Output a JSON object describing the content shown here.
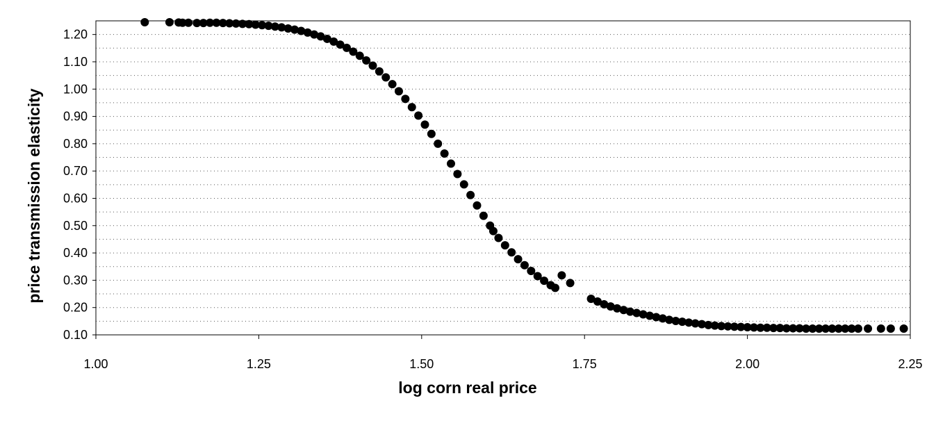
{
  "chart_data": {
    "type": "scatter",
    "title": "",
    "xlabel": "log corn real price",
    "ylabel": "price transmission elasticity",
    "xlim": [
      1.0,
      2.25
    ],
    "ylim": [
      0.1,
      1.25
    ],
    "x_ticks": [
      "1.00",
      "1.25",
      "1.50",
      "1.75",
      "2.00",
      "2.25"
    ],
    "y_ticks": [
      "0.10",
      "0.20",
      "0.30",
      "0.40",
      "0.50",
      "0.60",
      "0.70",
      "0.80",
      "0.90",
      "1.00",
      "1.10",
      "1.20"
    ],
    "grid": "horizontal-dotted",
    "legend": "none",
    "marker_color": "#000000",
    "points": [
      [
        1.075,
        1.245
      ],
      [
        1.113,
        1.245
      ],
      [
        1.127,
        1.244
      ],
      [
        1.133,
        1.243
      ],
      [
        1.142,
        1.243
      ],
      [
        1.155,
        1.242
      ],
      [
        1.165,
        1.242
      ],
      [
        1.175,
        1.243
      ],
      [
        1.185,
        1.243
      ],
      [
        1.195,
        1.242
      ],
      [
        1.205,
        1.241
      ],
      [
        1.215,
        1.24
      ],
      [
        1.225,
        1.239
      ],
      [
        1.235,
        1.238
      ],
      [
        1.245,
        1.236
      ],
      [
        1.255,
        1.234
      ],
      [
        1.265,
        1.232
      ],
      [
        1.275,
        1.229
      ],
      [
        1.285,
        1.226
      ],
      [
        1.295,
        1.222
      ],
      [
        1.305,
        1.218
      ],
      [
        1.315,
        1.213
      ],
      [
        1.325,
        1.207
      ],
      [
        1.335,
        1.2
      ],
      [
        1.345,
        1.193
      ],
      [
        1.355,
        1.184
      ],
      [
        1.365,
        1.174
      ],
      [
        1.375,
        1.163
      ],
      [
        1.385,
        1.151
      ],
      [
        1.395,
        1.137
      ],
      [
        1.405,
        1.122
      ],
      [
        1.415,
        1.105
      ],
      [
        1.425,
        1.086
      ],
      [
        1.435,
        1.065
      ],
      [
        1.445,
        1.043
      ],
      [
        1.455,
        1.018
      ],
      [
        1.465,
        0.992
      ],
      [
        1.475,
        0.964
      ],
      [
        1.485,
        0.934
      ],
      [
        1.495,
        0.903
      ],
      [
        1.505,
        0.87
      ],
      [
        1.515,
        0.836
      ],
      [
        1.525,
        0.8
      ],
      [
        1.535,
        0.764
      ],
      [
        1.545,
        0.727
      ],
      [
        1.555,
        0.689
      ],
      [
        1.565,
        0.651
      ],
      [
        1.575,
        0.612
      ],
      [
        1.585,
        0.574
      ],
      [
        1.595,
        0.536
      ],
      [
        1.605,
        0.5
      ],
      [
        1.61,
        0.48
      ],
      [
        1.618,
        0.455
      ],
      [
        1.628,
        0.428
      ],
      [
        1.638,
        0.402
      ],
      [
        1.648,
        0.377
      ],
      [
        1.658,
        0.355
      ],
      [
        1.668,
        0.334
      ],
      [
        1.678,
        0.315
      ],
      [
        1.688,
        0.298
      ],
      [
        1.698,
        0.282
      ],
      [
        1.705,
        0.272
      ],
      [
        1.715,
        0.318
      ],
      [
        1.728,
        0.29
      ],
      [
        1.76,
        0.232
      ],
      [
        1.77,
        0.222
      ],
      [
        1.78,
        0.212
      ],
      [
        1.79,
        0.204
      ],
      [
        1.8,
        0.197
      ],
      [
        1.81,
        0.191
      ],
      [
        1.82,
        0.185
      ],
      [
        1.83,
        0.18
      ],
      [
        1.84,
        0.175
      ],
      [
        1.85,
        0.17
      ],
      [
        1.86,
        0.165
      ],
      [
        1.87,
        0.16
      ],
      [
        1.88,
        0.155
      ],
      [
        1.89,
        0.151
      ],
      [
        1.9,
        0.148
      ],
      [
        1.91,
        0.145
      ],
      [
        1.92,
        0.142
      ],
      [
        1.93,
        0.139
      ],
      [
        1.94,
        0.136
      ],
      [
        1.95,
        0.134
      ],
      [
        1.96,
        0.132
      ],
      [
        1.97,
        0.131
      ],
      [
        1.98,
        0.13
      ],
      [
        1.99,
        0.129
      ],
      [
        2.0,
        0.128
      ],
      [
        2.01,
        0.127
      ],
      [
        2.02,
        0.126
      ],
      [
        2.03,
        0.126
      ],
      [
        2.04,
        0.125
      ],
      [
        2.05,
        0.125
      ],
      [
        2.06,
        0.124
      ],
      [
        2.07,
        0.124
      ],
      [
        2.08,
        0.124
      ],
      [
        2.09,
        0.123
      ],
      [
        2.1,
        0.123
      ],
      [
        2.11,
        0.123
      ],
      [
        2.12,
        0.123
      ],
      [
        2.13,
        0.123
      ],
      [
        2.14,
        0.123
      ],
      [
        2.15,
        0.123
      ],
      [
        2.16,
        0.123
      ],
      [
        2.17,
        0.123
      ],
      [
        2.185,
        0.123
      ],
      [
        2.205,
        0.123
      ],
      [
        2.22,
        0.123
      ],
      [
        2.24,
        0.123
      ]
    ]
  }
}
